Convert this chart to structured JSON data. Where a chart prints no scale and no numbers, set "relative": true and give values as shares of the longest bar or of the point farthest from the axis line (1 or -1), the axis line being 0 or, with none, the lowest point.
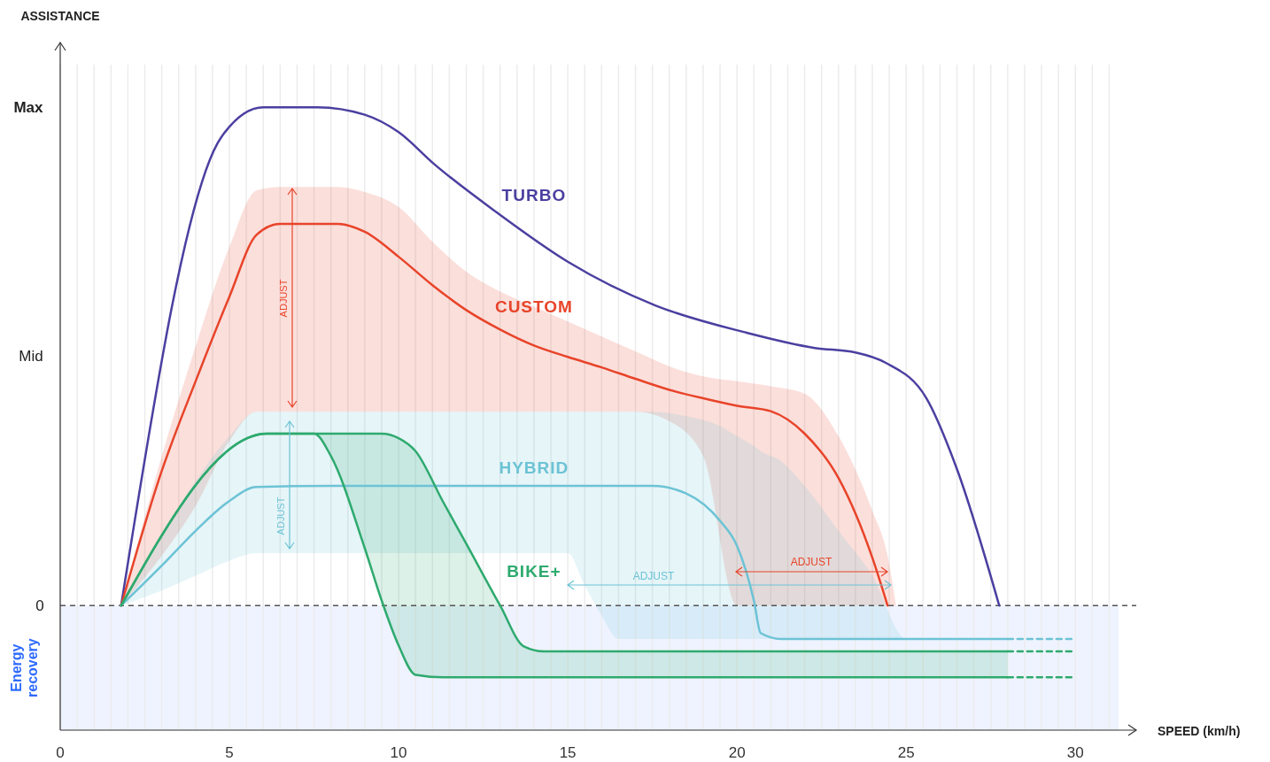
{
  "chart_data": {
    "type": "line",
    "xlabel": "SPEED (km/h)",
    "xlim": [
      0,
      31.8
    ],
    "relative": true,
    "xticks": [
      0,
      {
        "value": 0.5,
        "label": null
      },
      {
        "value": 1,
        "label": null
      },
      {
        "value": 1.5,
        "label": null
      },
      {
        "value": 2,
        "label": null
      },
      {
        "value": 2.5,
        "label": null
      },
      {
        "value": 3,
        "label": null
      },
      {
        "value": 3.5,
        "label": null
      },
      {
        "value": 4,
        "label": null
      },
      {
        "value": 4.5,
        "label": null
      },
      5,
      {
        "value": 5.5,
        "label": null
      },
      {
        "value": 6,
        "label": null
      },
      {
        "value": 6.5,
        "label": null
      },
      {
        "value": 7,
        "label": null
      },
      {
        "value": 7.5,
        "label": null
      },
      {
        "value": 8,
        "label": null
      },
      {
        "value": 8.5,
        "label": null
      },
      {
        "value": 9,
        "label": null
      },
      {
        "value": 9.5,
        "label": null
      },
      10,
      {
        "value": 10.5,
        "label": null
      },
      {
        "value": 11,
        "label": null
      },
      {
        "value": 11.5,
        "label": null
      },
      {
        "value": 12,
        "label": null
      },
      {
        "value": 12.5,
        "label": null
      },
      {
        "value": 13,
        "label": null
      },
      {
        "value": 13.5,
        "label": null
      },
      {
        "value": 14,
        "label": null
      },
      {
        "value": 14.5,
        "label": null
      },
      15,
      {
        "value": 15.5,
        "label": null
      },
      {
        "value": 16,
        "label": null
      },
      {
        "value": 16.5,
        "label": null
      },
      {
        "value": 17,
        "label": null
      },
      {
        "value": 17.5,
        "label": null
      },
      {
        "value": 18,
        "label": null
      },
      {
        "value": 18.5,
        "label": null
      },
      {
        "value": 19,
        "label": null
      },
      {
        "value": 19.5,
        "label": null
      },
      20,
      {
        "value": 20.5,
        "label": null
      },
      {
        "value": 21,
        "label": null
      },
      {
        "value": 21.5,
        "label": null
      },
      {
        "value": 22,
        "label": null
      },
      {
        "value": 22.5,
        "label": null
      },
      {
        "value": 23,
        "label": null
      },
      {
        "value": 23.5,
        "label": null
      },
      {
        "value": 24,
        "label": null
      },
      {
        "value": 24.5,
        "label": null
      },
      25,
      {
        "value": 25.5,
        "label": null
      },
      {
        "value": 26,
        "label": null
      },
      {
        "value": 26.5,
        "label": null
      },
      {
        "value": 27,
        "label": null
      },
      {
        "value": 27.5,
        "label": null
      },
      {
        "value": 28,
        "label": null
      },
      {
        "value": 28.5,
        "label": null
      },
      {
        "value": 29,
        "label": null
      },
      {
        "value": 29.5,
        "label": null
      },
      30,
      {
        "value": 30.5,
        "label": null
      },
      {
        "value": 31,
        "label": null
      }
    ],
    "grid": "x",
    "series": [
      {
        "name": "TURBO",
        "color": "#4b3fa0",
        "x": [
          1.8,
          4.76,
          6,
          7.6,
          9,
          10,
          11.05,
          12.9,
          15,
          17.6,
          20.2,
          22.3,
          23.5,
          24.4,
          25.6,
          26.5,
          27.75
        ],
        "values": [
          0,
          0.94,
          1,
          1,
          0.985,
          0.95,
          0.886,
          0.789,
          0.69,
          0.602,
          0.549,
          0.517,
          0.508,
          0.487,
          0.416,
          0.274,
          0
        ]
      },
      {
        "name": "CUSTOM",
        "color": "#e8442a",
        "x": [
          1.8,
          3,
          4,
          5,
          5.8,
          6.5,
          8.2,
          9,
          10,
          11,
          12,
          13,
          14,
          15,
          16,
          17,
          18,
          19,
          20,
          21,
          22,
          23,
          24,
          24.45,
          24.7
        ],
        "values": [
          0,
          0.27,
          0.45,
          0.62,
          0.744,
          0.766,
          0.766,
          0.75,
          0.7,
          0.643,
          0.593,
          0.554,
          0.522,
          0.499,
          0.478,
          0.455,
          0.433,
          0.416,
          0.401,
          0.39,
          0.345,
          0.256,
          0.096,
          0,
          null
        ],
        "lower": [
          0,
          0.1,
          0.2,
          0.33,
          0.389,
          0.389,
          0.389,
          0.389,
          0.389,
          0.389,
          0.389,
          0.389,
          0.389,
          0.389,
          0.389,
          0.389,
          0.37,
          0.3,
          0,
          0,
          0,
          0,
          0,
          0,
          0
        ],
        "upper": [
          0,
          0.3,
          0.52,
          0.72,
          0.833,
          0.84,
          0.84,
          0.83,
          0.8,
          0.73,
          0.67,
          0.63,
          0.6,
          0.57,
          0.54,
          0.51,
          0.48,
          0.46,
          0.45,
          0.44,
          0.425,
          0.34,
          0.19,
          0.1,
          0
        ]
      },
      {
        "name": "HYBRID",
        "color": "#6cc3d5",
        "x": [
          1.8,
          3,
          4,
          5,
          5.8,
          8,
          10,
          12,
          14,
          15,
          15.5,
          16,
          16.5,
          17.5,
          18.5,
          19.5,
          20,
          20.5,
          20.7,
          21.3,
          22,
          23,
          24,
          25,
          28
        ],
        "values": [
          0,
          0.08,
          0.15,
          0.21,
          0.238,
          0.24,
          0.24,
          0.24,
          0.24,
          0.24,
          0.24,
          0.24,
          0.24,
          0.24,
          0.225,
          0.17,
          0.12,
          0.01,
          -0.055,
          -0.067,
          -0.067,
          -0.067,
          -0.067,
          -0.067,
          -0.067
        ],
        "lower": [
          0,
          0.03,
          0.06,
          0.09,
          0.105,
          0.105,
          0.105,
          0.105,
          0.105,
          0.105,
          0.04,
          -0.02,
          -0.067,
          -0.067,
          -0.067,
          -0.067,
          -0.067,
          -0.067,
          -0.067,
          -0.067,
          -0.067,
          -0.067,
          -0.067,
          -0.067,
          -0.067
        ],
        "upper": [
          0,
          0.14,
          0.25,
          0.34,
          0.389,
          0.389,
          0.389,
          0.389,
          0.389,
          0.389,
          0.389,
          0.389,
          0.389,
          0.389,
          0.38,
          0.36,
          0.34,
          0.32,
          0.31,
          0.29,
          0.24,
          0.15,
          0.06,
          -0.067,
          -0.067
        ]
      },
      {
        "color": "#6cc3d5",
        "line_style": "dashed",
        "x": [
          28,
          29.9
        ],
        "values": [
          -0.067,
          -0.067
        ]
      },
      {
        "name": "BIKE+",
        "color": "#2eaa6e",
        "x": [
          1.8,
          6.1,
          7.5,
          8,
          9,
          9.5,
          10,
          10.5,
          11.3,
          12,
          13,
          13.7,
          14.3,
          28
        ],
        "values": [
          0,
          0.345,
          0.345,
          0.345,
          0.345,
          0.345,
          0.336,
          0.31,
          0.21,
          0.124,
          0,
          -0.082,
          -0.092,
          -0.092
        ],
        "lower": [
          0,
          0.345,
          0.345,
          0.3,
          0.115,
          0.01,
          -0.08,
          -0.139,
          -0.144,
          -0.144,
          -0.144,
          -0.144,
          -0.144,
          -0.144
        ],
        "upper": [
          0,
          0.345,
          0.345,
          0.345,
          0.345,
          0.345,
          0.336,
          0.31,
          0.21,
          0.124,
          0,
          -0.082,
          -0.092,
          -0.092
        ]
      },
      {
        "color": "#2eaa6e",
        "x": [
          1.8,
          6.1,
          7.5,
          8,
          9,
          9.5,
          10,
          10.5,
          11.3,
          28
        ],
        "values": [
          0,
          0.345,
          0.345,
          0.3,
          0.115,
          0.01,
          -0.08,
          -0.139,
          -0.144,
          -0.144
        ]
      },
      {
        "color": "#2eaa6e",
        "line_style": "dashed",
        "x": [
          28,
          29.9
        ],
        "values": [
          -0.092,
          -0.092
        ]
      },
      {
        "color": "#2eaa6e",
        "line_style": "dashed",
        "x": [
          28,
          29.9
        ],
        "values": [
          -0.144,
          -0.144
        ]
      }
    ],
    "ref_lines": [
      {
        "axis": "y",
        "value": 0,
        "color": "#555555",
        "line_style": "dashed"
      }
    ],
    "bands": [
      {
        "axis": "y",
        "from": -0.25,
        "to": 0,
        "label": "Energy recovery",
        "color": "#eef3ff"
      }
    ],
    "annotations": [
      "Max",
      "Mid",
      "0",
      "ADJUST",
      "ADJUST",
      "ADJUST",
      "ADJUST",
      "ASSISTANCE"
    ]
  }
}
